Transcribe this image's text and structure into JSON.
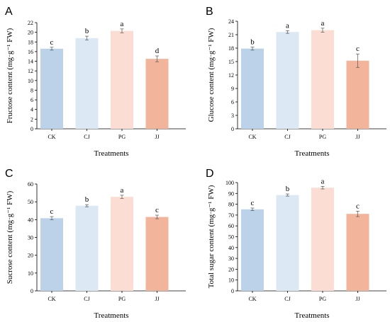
{
  "chart_data": [
    {
      "panel": "A",
      "type": "bar",
      "categories": [
        "CK",
        "CJ",
        "PG",
        "JJ"
      ],
      "values": [
        16.6,
        18.8,
        20.3,
        14.5
      ],
      "errors": [
        0.3,
        0.4,
        0.4,
        0.6
      ],
      "significance": [
        "c",
        "b",
        "a",
        "d"
      ],
      "xlabel": "Treatments",
      "ylabel": "Fructose content (mg·g⁻¹ FW)",
      "ylim": [
        0,
        22
      ],
      "yticks": [
        0,
        2,
        4,
        6,
        8,
        10,
        12,
        14,
        16,
        18,
        20,
        22
      ],
      "colors": [
        "#bcd2e8",
        "#dde8f5",
        "#fcddd3",
        "#f2b59c"
      ]
    },
    {
      "panel": "B",
      "type": "bar",
      "categories": [
        "CK",
        "CJ",
        "PG",
        "JJ"
      ],
      "values": [
        17.9,
        21.6,
        22.0,
        15.2
      ],
      "errors": [
        0.35,
        0.3,
        0.45,
        1.5
      ],
      "significance": [
        "b",
        "a",
        "a",
        "c"
      ],
      "xlabel": "Treatments",
      "ylabel": "Glucose content (mg·g⁻¹ FW)",
      "ylim": [
        0,
        24
      ],
      "yticks": [
        0,
        3,
        6,
        9,
        12,
        15,
        18,
        21,
        24
      ],
      "colors": [
        "#bcd2e8",
        "#dde8f5",
        "#fcddd3",
        "#f2b59c"
      ]
    },
    {
      "panel": "C",
      "type": "bar",
      "categories": [
        "CK",
        "CJ",
        "PG",
        "JJ"
      ],
      "values": [
        40.8,
        47.8,
        52.8,
        41.5
      ],
      "errors": [
        0.9,
        0.6,
        0.9,
        1.0
      ],
      "significance": [
        "c",
        "b",
        "a",
        "c"
      ],
      "xlabel": "Treatments",
      "ylabel": "Sucrose content (mg·g⁻¹ FW)",
      "ylim": [
        0,
        60
      ],
      "yticks": [
        0,
        10,
        20,
        30,
        40,
        50,
        60
      ],
      "colors": [
        "#bcd2e8",
        "#dde8f5",
        "#fcddd3",
        "#f2b59c"
      ]
    },
    {
      "panel": "D",
      "type": "bar",
      "categories": [
        "CK",
        "CJ",
        "PG",
        "JJ"
      ],
      "values": [
        75.3,
        88.5,
        95.3,
        71.1
      ],
      "errors": [
        1.2,
        1.0,
        1.2,
        2.5
      ],
      "significance": [
        "c",
        "b",
        "a",
        "c"
      ],
      "xlabel": "Treatments",
      "ylabel": "Total sugar content (mg·g⁻¹ FW)",
      "ylim": [
        0,
        100
      ],
      "yticks": [
        0,
        10,
        20,
        30,
        40,
        50,
        60,
        70,
        80,
        90,
        100
      ],
      "colors": [
        "#bcd2e8",
        "#dde8f5",
        "#fcddd3",
        "#f2b59c"
      ]
    }
  ]
}
